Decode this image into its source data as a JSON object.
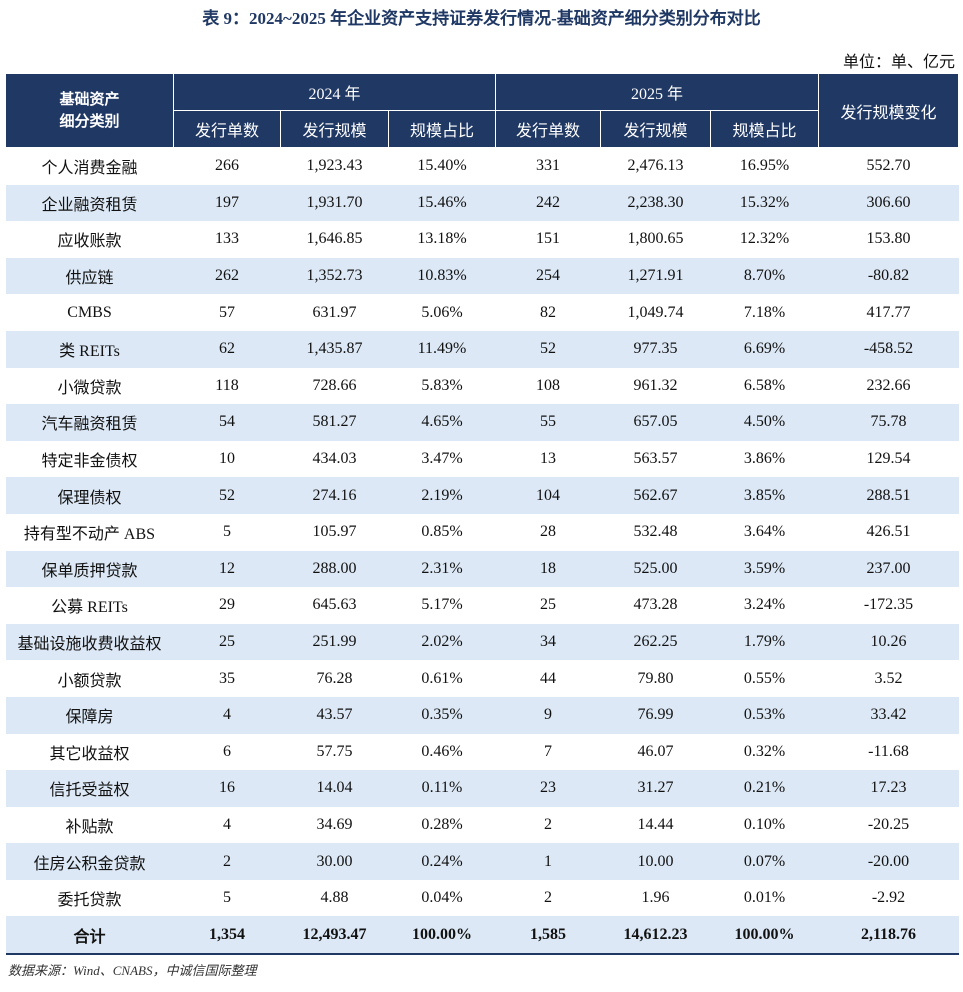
{
  "title": "表 9：2024~2025 年企业资产支持证券发行情况-基础资产细分类别分布对比",
  "unit": "单位：单、亿元",
  "table": {
    "header": {
      "category": [
        "基础资产",
        "细分类别"
      ],
      "years": [
        "2024 年",
        "2025 年"
      ],
      "subcolumns": [
        "发行单数",
        "发行规模",
        "规模占比",
        "发行单数",
        "发行规模",
        "规模占比"
      ],
      "change": "发行规模变化"
    },
    "rows": [
      [
        "个人消费金融",
        "266",
        "1,923.43",
        "15.40%",
        "331",
        "2,476.13",
        "16.95%",
        "552.70"
      ],
      [
        "企业融资租赁",
        "197",
        "1,931.70",
        "15.46%",
        "242",
        "2,238.30",
        "15.32%",
        "306.60"
      ],
      [
        "应收账款",
        "133",
        "1,646.85",
        "13.18%",
        "151",
        "1,800.65",
        "12.32%",
        "153.80"
      ],
      [
        "供应链",
        "262",
        "1,352.73",
        "10.83%",
        "254",
        "1,271.91",
        "8.70%",
        "-80.82"
      ],
      [
        "CMBS",
        "57",
        "631.97",
        "5.06%",
        "82",
        "1,049.74",
        "7.18%",
        "417.77"
      ],
      [
        "类 REITs",
        "62",
        "1,435.87",
        "11.49%",
        "52",
        "977.35",
        "6.69%",
        "-458.52"
      ],
      [
        "小微贷款",
        "118",
        "728.66",
        "5.83%",
        "108",
        "961.32",
        "6.58%",
        "232.66"
      ],
      [
        "汽车融资租赁",
        "54",
        "581.27",
        "4.65%",
        "55",
        "657.05",
        "4.50%",
        "75.78"
      ],
      [
        "特定非金债权",
        "10",
        "434.03",
        "3.47%",
        "13",
        "563.57",
        "3.86%",
        "129.54"
      ],
      [
        "保理债权",
        "52",
        "274.16",
        "2.19%",
        "104",
        "562.67",
        "3.85%",
        "288.51"
      ],
      [
        "持有型不动产 ABS",
        "5",
        "105.97",
        "0.85%",
        "28",
        "532.48",
        "3.64%",
        "426.51"
      ],
      [
        "保单质押贷款",
        "12",
        "288.00",
        "2.31%",
        "18",
        "525.00",
        "3.59%",
        "237.00"
      ],
      [
        "公募 REITs",
        "29",
        "645.63",
        "5.17%",
        "25",
        "473.28",
        "3.24%",
        "-172.35"
      ],
      [
        "基础设施收费收益权",
        "25",
        "251.99",
        "2.02%",
        "34",
        "262.25",
        "1.79%",
        "10.26"
      ],
      [
        "小额贷款",
        "35",
        "76.28",
        "0.61%",
        "44",
        "79.80",
        "0.55%",
        "3.52"
      ],
      [
        "保障房",
        "4",
        "43.57",
        "0.35%",
        "9",
        "76.99",
        "0.53%",
        "33.42"
      ],
      [
        "其它收益权",
        "6",
        "57.75",
        "0.46%",
        "7",
        "46.07",
        "0.32%",
        "-11.68"
      ],
      [
        "信托受益权",
        "16",
        "14.04",
        "0.11%",
        "23",
        "31.27",
        "0.21%",
        "17.23"
      ],
      [
        "补贴款",
        "4",
        "34.69",
        "0.28%",
        "2",
        "14.44",
        "0.10%",
        "-20.25"
      ],
      [
        "住房公积金贷款",
        "2",
        "30.00",
        "0.24%",
        "1",
        "10.00",
        "0.07%",
        "-20.00"
      ],
      [
        "委托贷款",
        "5",
        "4.88",
        "0.04%",
        "2",
        "1.96",
        "0.01%",
        "-2.92"
      ]
    ],
    "total": [
      "合计",
      "1,354",
      "12,493.47",
      "100.00%",
      "1,585",
      "14,612.23",
      "100.00%",
      "2,118.76"
    ]
  },
  "source": "数据来源：Wind、CNABS，中诚信国际整理"
}
